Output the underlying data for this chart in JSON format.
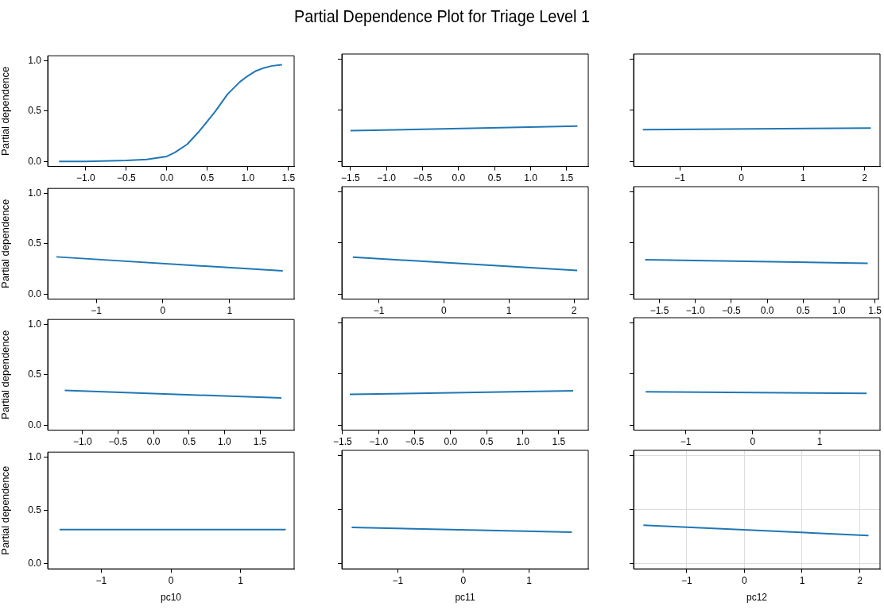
{
  "chart_data": [
    {
      "type": "line",
      "ylabel": "Partial dependence",
      "xlim": [
        -1.47,
        1.57
      ],
      "xticks": [
        {
          "value": -1,
          "label": "−1.0"
        },
        {
          "value": -0.5,
          "label": "−0.5"
        },
        {
          "value": 0,
          "label": "0.0"
        },
        {
          "value": 0.5,
          "label": "0.5"
        },
        {
          "value": 1,
          "label": "1.0"
        },
        {
          "value": 1.5,
          "label": "1.5"
        }
      ],
      "ylim": [
        -0.05,
        1.05
      ],
      "yticks": [
        {
          "value": 0,
          "label": "0.0"
        },
        {
          "value": 0.5,
          "label": "0.5"
        },
        {
          "value": 1,
          "label": "1.0"
        }
      ],
      "grid": false,
      "legend": false,
      "series": [
        {
          "color": "#1f77b4",
          "x": [
            -1.33,
            -1.0,
            -0.5,
            -0.25,
            0,
            0.1,
            0.25,
            0.4,
            0.5,
            0.6,
            0.75,
            0.9,
            1.0,
            1.1,
            1.2,
            1.3,
            1.42
          ],
          "values": [
            0,
            0,
            0.01,
            0.02,
            0.05,
            0.09,
            0.17,
            0.3,
            0.4,
            0.5,
            0.67,
            0.79,
            0.85,
            0.9,
            0.93,
            0.95,
            0.96
          ]
        }
      ]
    },
    {
      "type": "line",
      "title": "Partial Dependence Plot for Triage Level 1",
      "xlim": [
        -1.62,
        1.8
      ],
      "xticks": [
        {
          "value": -1.5,
          "label": "−1.5"
        },
        {
          "value": -1,
          "label": "−1.0"
        },
        {
          "value": -0.5,
          "label": "−0.5"
        },
        {
          "value": 0,
          "label": "0.0"
        },
        {
          "value": 0.5,
          "label": "0.5"
        },
        {
          "value": 1,
          "label": "1.0"
        },
        {
          "value": 1.5,
          "label": "1.5"
        }
      ],
      "ylim": [
        -0.05,
        1.05
      ],
      "yticks": [
        {
          "value": 0,
          "label": null
        },
        {
          "value": 0.5,
          "label": null
        },
        {
          "value": 1,
          "label": null
        }
      ],
      "tick_labels": "x",
      "grid": false,
      "legend": false,
      "series": [
        {
          "color": "#1f77b4",
          "x": [
            -1.5,
            1.65
          ],
          "values": [
            0.3,
            0.345
          ]
        }
      ]
    },
    {
      "type": "line",
      "xlim": [
        -1.75,
        2.25
      ],
      "xticks": [
        -1,
        0,
        1,
        2
      ],
      "ylim": [
        -0.05,
        1.05
      ],
      "yticks": [
        {
          "value": 0,
          "label": null
        },
        {
          "value": 0.5,
          "label": null
        },
        {
          "value": 1,
          "label": null
        }
      ],
      "tick_labels": "x",
      "grid": false,
      "legend": false,
      "series": [
        {
          "color": "#1f77b4",
          "x": [
            -1.6,
            2.1
          ],
          "values": [
            0.31,
            0.325
          ]
        }
      ]
    },
    {
      "type": "line",
      "ylabel": "Partial dependence",
      "xlim": [
        -1.73,
        1.97
      ],
      "xticks": [
        -1,
        0,
        1
      ],
      "ylim": [
        -0.05,
        1.05
      ],
      "yticks": [
        {
          "value": 0,
          "label": "0.0"
        },
        {
          "value": 0.5,
          "label": "0.5"
        },
        {
          "value": 1,
          "label": "1.0"
        }
      ],
      "grid": false,
      "legend": false,
      "series": [
        {
          "color": "#1f77b4",
          "x": [
            -1.6,
            1.8
          ],
          "values": [
            0.37,
            0.23
          ]
        }
      ]
    },
    {
      "type": "line",
      "xlim": [
        -1.57,
        2.22
      ],
      "xticks": [
        -1,
        0,
        1,
        2
      ],
      "ylim": [
        -0.05,
        1.05
      ],
      "yticks": [
        {
          "value": 0,
          "label": null
        },
        {
          "value": 0.5,
          "label": null
        },
        {
          "value": 1,
          "label": null
        }
      ],
      "tick_labels": "x",
      "grid": false,
      "legend": false,
      "series": [
        {
          "color": "#1f77b4",
          "x": [
            -1.4,
            2.05
          ],
          "values": [
            0.36,
            0.23
          ]
        }
      ]
    },
    {
      "type": "line",
      "xlim": [
        -1.86,
        1.55
      ],
      "xticks": [
        {
          "value": -1.5,
          "label": "−1.5"
        },
        {
          "value": -1,
          "label": "−1.0"
        },
        {
          "value": -0.5,
          "label": "−0.5"
        },
        {
          "value": 0,
          "label": "0.0"
        },
        {
          "value": 0.5,
          "label": "0.5"
        },
        {
          "value": 1,
          "label": "1.0"
        },
        {
          "value": 1.5,
          "label": "1.5"
        }
      ],
      "ylim": [
        -0.05,
        1.05
      ],
      "yticks": [
        {
          "value": 0,
          "label": null
        },
        {
          "value": 0.5,
          "label": null
        },
        {
          "value": 1,
          "label": null
        }
      ],
      "tick_labels": "x",
      "grid": false,
      "legend": false,
      "series": [
        {
          "color": "#1f77b4",
          "x": [
            -1.7,
            1.4
          ],
          "values": [
            0.335,
            0.3
          ]
        }
      ]
    },
    {
      "type": "line",
      "ylabel": "Partial dependence",
      "xlim": [
        -1.49,
        1.98
      ],
      "xticks": [
        {
          "value": -1,
          "label": "−1.0"
        },
        {
          "value": -0.5,
          "label": "−0.5"
        },
        {
          "value": 0,
          "label": "0.0"
        },
        {
          "value": 0.5,
          "label": "0.5"
        },
        {
          "value": 1,
          "label": "1.0"
        },
        {
          "value": 1.5,
          "label": "1.5"
        }
      ],
      "ylim": [
        -0.05,
        1.05
      ],
      "yticks": [
        {
          "value": 0,
          "label": "0.0"
        },
        {
          "value": 0.5,
          "label": "0.5"
        },
        {
          "value": 1,
          "label": "1.0"
        }
      ],
      "grid": false,
      "legend": false,
      "series": [
        {
          "color": "#1f77b4",
          "x": [
            -1.25,
            1.8
          ],
          "values": [
            0.345,
            0.27
          ]
        }
      ]
    },
    {
      "type": "line",
      "xlim": [
        -1.51,
        1.91
      ],
      "xticks": [
        {
          "value": -1.5,
          "label": "−1.5"
        },
        {
          "value": -1,
          "label": "−1.0"
        },
        {
          "value": -0.5,
          "label": "−0.5"
        },
        {
          "value": 0,
          "label": "0.0"
        },
        {
          "value": 0.5,
          "label": "0.5"
        },
        {
          "value": 1,
          "label": "1.0"
        },
        {
          "value": 1.5,
          "label": "1.5"
        }
      ],
      "ylim": [
        -0.05,
        1.05
      ],
      "yticks": [
        {
          "value": 0,
          "label": null
        },
        {
          "value": 0.5,
          "label": null
        },
        {
          "value": 1,
          "label": null
        }
      ],
      "tick_labels": "x",
      "grid": false,
      "legend": false,
      "series": [
        {
          "color": "#1f77b4",
          "x": [
            -1.4,
            1.7
          ],
          "values": [
            0.3,
            0.335
          ]
        }
      ]
    },
    {
      "type": "line",
      "xlim": [
        -1.78,
        1.9
      ],
      "xticks": [
        -1,
        0,
        1
      ],
      "ylim": [
        -0.05,
        1.05
      ],
      "yticks": [
        {
          "value": 0,
          "label": null
        },
        {
          "value": 0.5,
          "label": null
        },
        {
          "value": 1,
          "label": null
        }
      ],
      "tick_labels": "x",
      "grid": false,
      "legend": false,
      "series": [
        {
          "color": "#1f77b4",
          "x": [
            -1.6,
            1.7
          ],
          "values": [
            0.325,
            0.31
          ]
        }
      ]
    },
    {
      "type": "line",
      "xlabel": "pc10",
      "ylabel": "Partial dependence",
      "xlim": [
        -1.77,
        1.77
      ],
      "xticks": [
        -1,
        0,
        1
      ],
      "ylim": [
        -0.05,
        1.05
      ],
      "yticks": [
        {
          "value": 0,
          "label": "0.0"
        },
        {
          "value": 0.5,
          "label": "0.5"
        },
        {
          "value": 1,
          "label": "1.0"
        }
      ],
      "grid": false,
      "legend": false,
      "series": [
        {
          "color": "#1f77b4",
          "x": [
            -1.6,
            1.65
          ],
          "values": [
            0.32,
            0.32
          ]
        }
      ]
    },
    {
      "type": "line",
      "xlabel": "pc11",
      "xlim": [
        -1.85,
        1.9
      ],
      "xticks": [
        -1,
        0,
        1
      ],
      "ylim": [
        -0.05,
        1.05
      ],
      "yticks": [
        {
          "value": 0,
          "label": null
        },
        {
          "value": 0.5,
          "label": null
        },
        {
          "value": 1,
          "label": null
        }
      ],
      "tick_labels": "x",
      "grid": false,
      "legend": false,
      "series": [
        {
          "color": "#1f77b4",
          "x": [
            -1.7,
            1.65
          ],
          "values": [
            0.335,
            0.29
          ]
        }
      ]
    },
    {
      "type": "line",
      "xlabel": "pc12",
      "xlim": [
        -1.92,
        2.35
      ],
      "xticks": [
        -1,
        0,
        1,
        2
      ],
      "ylim": [
        -0.05,
        1.05
      ],
      "yticks": [
        {
          "value": 0,
          "label": null
        },
        {
          "value": 0.5,
          "label": null
        },
        {
          "value": 1,
          "label": null
        }
      ],
      "tick_labels": "x",
      "grid": true,
      "legend": false,
      "series": [
        {
          "color": "#1f77b4",
          "x": [
            -1.75,
            2.15
          ],
          "values": [
            0.355,
            0.26
          ]
        }
      ]
    }
  ]
}
